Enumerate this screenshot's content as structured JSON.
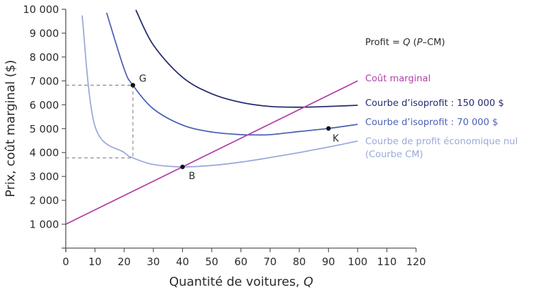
{
  "chart_data": {
    "type": "line",
    "title": "",
    "xlabel": "Quantité de voitures, Q",
    "ylabel": "Prix, coût marginal ($)",
    "xlim": [
      0,
      120
    ],
    "ylim": [
      0,
      10000
    ],
    "x_ticks": [
      "0",
      "10",
      "20",
      "30",
      "40",
      "50",
      "60",
      "70",
      "80",
      "90",
      "100",
      "110",
      "120"
    ],
    "y_ticks": [
      "1 000",
      "2 000",
      "3 000",
      "4 000",
      "5 000",
      "6 000",
      "7 000",
      "8 000",
      "9 000",
      "10 000"
    ],
    "grid": false,
    "formula": "Profit = Q (P–CM)",
    "legend_position": "right",
    "series": [
      {
        "name": "Coût marginal",
        "color": "#b340a8",
        "kind": "line",
        "x": [
          0,
          10,
          20,
          30,
          40,
          50,
          60,
          70,
          80,
          90,
          100
        ],
        "values": [
          1000,
          1600,
          2200,
          2800,
          3400,
          4000,
          4600,
          5200,
          5800,
          6400,
          7000
        ]
      },
      {
        "name": "Courbe d’isoprofit : 150 000 $",
        "color": "#222b6e",
        "kind": "curve",
        "x": [
          24,
          30,
          40,
          50,
          60,
          70,
          80,
          90,
          100
        ],
        "values": [
          9970,
          8500,
          7150,
          6460,
          6100,
          5930,
          5900,
          5930,
          5980
        ]
      },
      {
        "name": "Courbe d’isoprofit : 70 000 $",
        "color": "#4a62b3",
        "kind": "curve",
        "x": [
          14,
          20,
          23,
          30,
          40,
          50,
          60,
          64,
          70,
          80,
          90,
          100
        ],
        "values": [
          9850,
          7500,
          6820,
          5830,
          5150,
          4860,
          4750,
          4740,
          4750,
          4880,
          5010,
          5180
        ]
      },
      {
        "name": "Courbe de profit économique nul (Courbe CM)",
        "color": "#9aaad8",
        "kind": "curve",
        "x": [
          5.6,
          10,
          20,
          23,
          30,
          40,
          50,
          60,
          70,
          80,
          90,
          100
        ],
        "values": [
          9740,
          5100,
          4000,
          3777,
          3500,
          3400,
          3460,
          3600,
          3790,
          4000,
          4230,
          4480
        ]
      }
    ],
    "points": [
      {
        "label": "G",
        "x": 23,
        "y": 6820
      },
      {
        "label": "B",
        "x": 40,
        "y": 3400
      },
      {
        "label": "K",
        "x": 90,
        "y": 5010
      }
    ],
    "guides": [
      {
        "type": "dashed",
        "from": [
          0,
          6820
        ],
        "to": [
          23,
          6820
        ]
      },
      {
        "type": "dashed",
        "from": [
          23,
          6820
        ],
        "to": [
          23,
          3777
        ]
      },
      {
        "type": "dashed",
        "from": [
          0,
          3777
        ],
        "to": [
          23,
          3777
        ]
      }
    ]
  },
  "legend": {
    "formula_prefix": "Profit = ",
    "formula_q": "Q",
    "formula_mid": " (",
    "formula_p": "P",
    "formula_suffix": "–CM)",
    "mc": "Coût marginal",
    "iso150": "Courbe d’isoprofit : 150 000 $",
    "iso70": "Courbe d’isoprofit : 70 000 $",
    "zero1": "Courbe de profit économique nul",
    "zero2": "(Courbe CM)"
  },
  "axes": {
    "xlabel_text": "Quantité de voitures, ",
    "xlabel_var": "Q",
    "ylabel": "Prix, coût marginal ($)"
  }
}
